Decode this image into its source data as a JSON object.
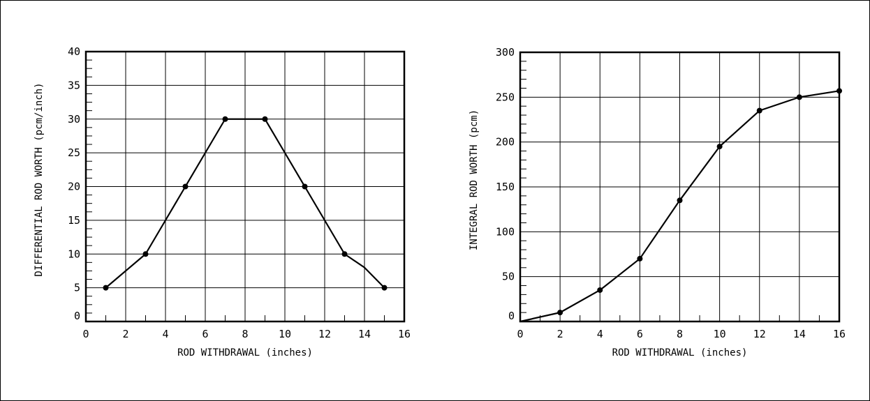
{
  "chart_data": [
    {
      "type": "line",
      "xlabel": "ROD WITHDRAWAL (inches)",
      "ylabel": "DIFFERENTIAL ROD WORTH (pcm/inch)",
      "xlim": [
        0,
        16
      ],
      "ylim": [
        0,
        40
      ],
      "xticks": [
        0,
        2,
        4,
        6,
        8,
        10,
        12,
        14,
        16
      ],
      "yticks": [
        0,
        5,
        10,
        15,
        20,
        25,
        30,
        35,
        40
      ],
      "grid": true,
      "x": [
        1,
        3,
        4,
        5,
        6,
        7,
        9,
        10,
        11,
        12,
        13,
        14,
        15
      ],
      "y": [
        5,
        10,
        15,
        20,
        25,
        30,
        30,
        25,
        20,
        15,
        10,
        8,
        5
      ],
      "markers_x": [
        1,
        3,
        5,
        7,
        9,
        11,
        13,
        15
      ],
      "markers_y": [
        5,
        10,
        20,
        30,
        30,
        20,
        10,
        5
      ]
    },
    {
      "type": "line",
      "xlabel": "ROD WITHDRAWAL (inches)",
      "ylabel": "INTEGRAL ROD WORTH (pcm)",
      "xlim": [
        0,
        16
      ],
      "ylim": [
        0,
        300
      ],
      "xticks": [
        0,
        2,
        4,
        6,
        8,
        10,
        12,
        14,
        16
      ],
      "yticks": [
        0,
        50,
        100,
        150,
        200,
        250,
        300
      ],
      "grid": true,
      "x": [
        0,
        2,
        4,
        6,
        8,
        10,
        12,
        14,
        16
      ],
      "y": [
        0,
        10,
        35,
        70,
        135,
        195,
        235,
        250,
        257
      ],
      "markers_x": [
        2,
        4,
        6,
        8,
        10,
        12,
        14,
        16
      ],
      "markers_y": [
        10,
        35,
        70,
        135,
        195,
        235,
        250,
        257
      ]
    }
  ]
}
